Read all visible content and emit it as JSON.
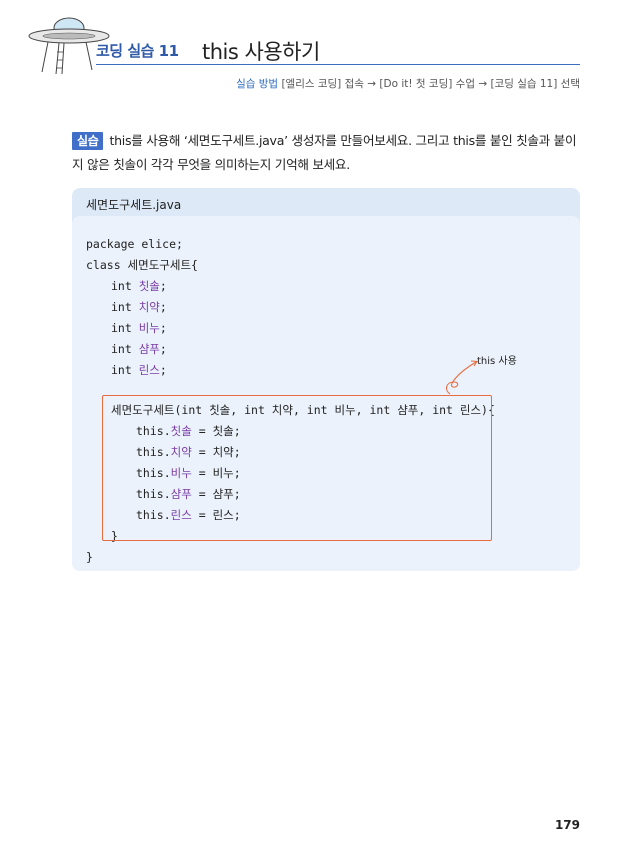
{
  "header": {
    "section": "코딩 실습 11",
    "topic": "this 사용하기"
  },
  "method": {
    "label": "실습 방법",
    "path": "[엘리스 코딩] 접속 → [Do it! 첫 코딩] 수업 → [코딩 실습 11] 선택"
  },
  "instruction": {
    "badge": "실습",
    "text": "this를 사용해 ‘세면도구세트.java’ 생성자를 만들어보세요. 그리고 this를 붙인 칫솔과 붙이지 않은 칫솔이 각각 무엇을 의미하는지 기억해 보세요."
  },
  "code_panel": {
    "filename": "세면도구세트.java",
    "annotation": "this 사용",
    "lines": [
      {
        "text": "package elice;",
        "indent": 0
      },
      {
        "text": "class 세면도구세트{",
        "indent": 0
      },
      {
        "pre": "int ",
        "var": "칫솔",
        "post": ";",
        "indent": 1
      },
      {
        "pre": "int ",
        "var": "치약",
        "post": ";",
        "indent": 1
      },
      {
        "pre": "int ",
        "var": "비누",
        "post": ";",
        "indent": 1
      },
      {
        "pre": "int ",
        "var": "샴푸",
        "post": ";",
        "indent": 1
      },
      {
        "pre": "int ",
        "var": "린스",
        "post": ";",
        "indent": 1
      },
      {
        "text": "세면도구세트(int 칫솔, int 치약, int 비누, int 샴푸, int 린스){",
        "indent": 1
      },
      {
        "pre": "this.",
        "var": "칫솔",
        "post": " = 칫솔;",
        "indent": 2
      },
      {
        "pre": "this.",
        "var": "치약",
        "post": " = 치약;",
        "indent": 2
      },
      {
        "pre": "this.",
        "var": "비누",
        "post": " = 비누;",
        "indent": 2
      },
      {
        "pre": "this.",
        "var": "샴푸",
        "post": " = 샴푸;",
        "indent": 2
      },
      {
        "pre": "this.",
        "var": "린스",
        "post": " = 린스;",
        "indent": 2
      },
      {
        "text": "}",
        "indent": 1
      },
      {
        "text": "}",
        "indent": 0
      }
    ]
  },
  "page_number": "179",
  "colors": {
    "accent": "#2f5aa8",
    "badge": "#3f6fc9",
    "panel": "#dde9f7",
    "highlight_border": "#e86c40",
    "variable": "#7a3da8"
  }
}
